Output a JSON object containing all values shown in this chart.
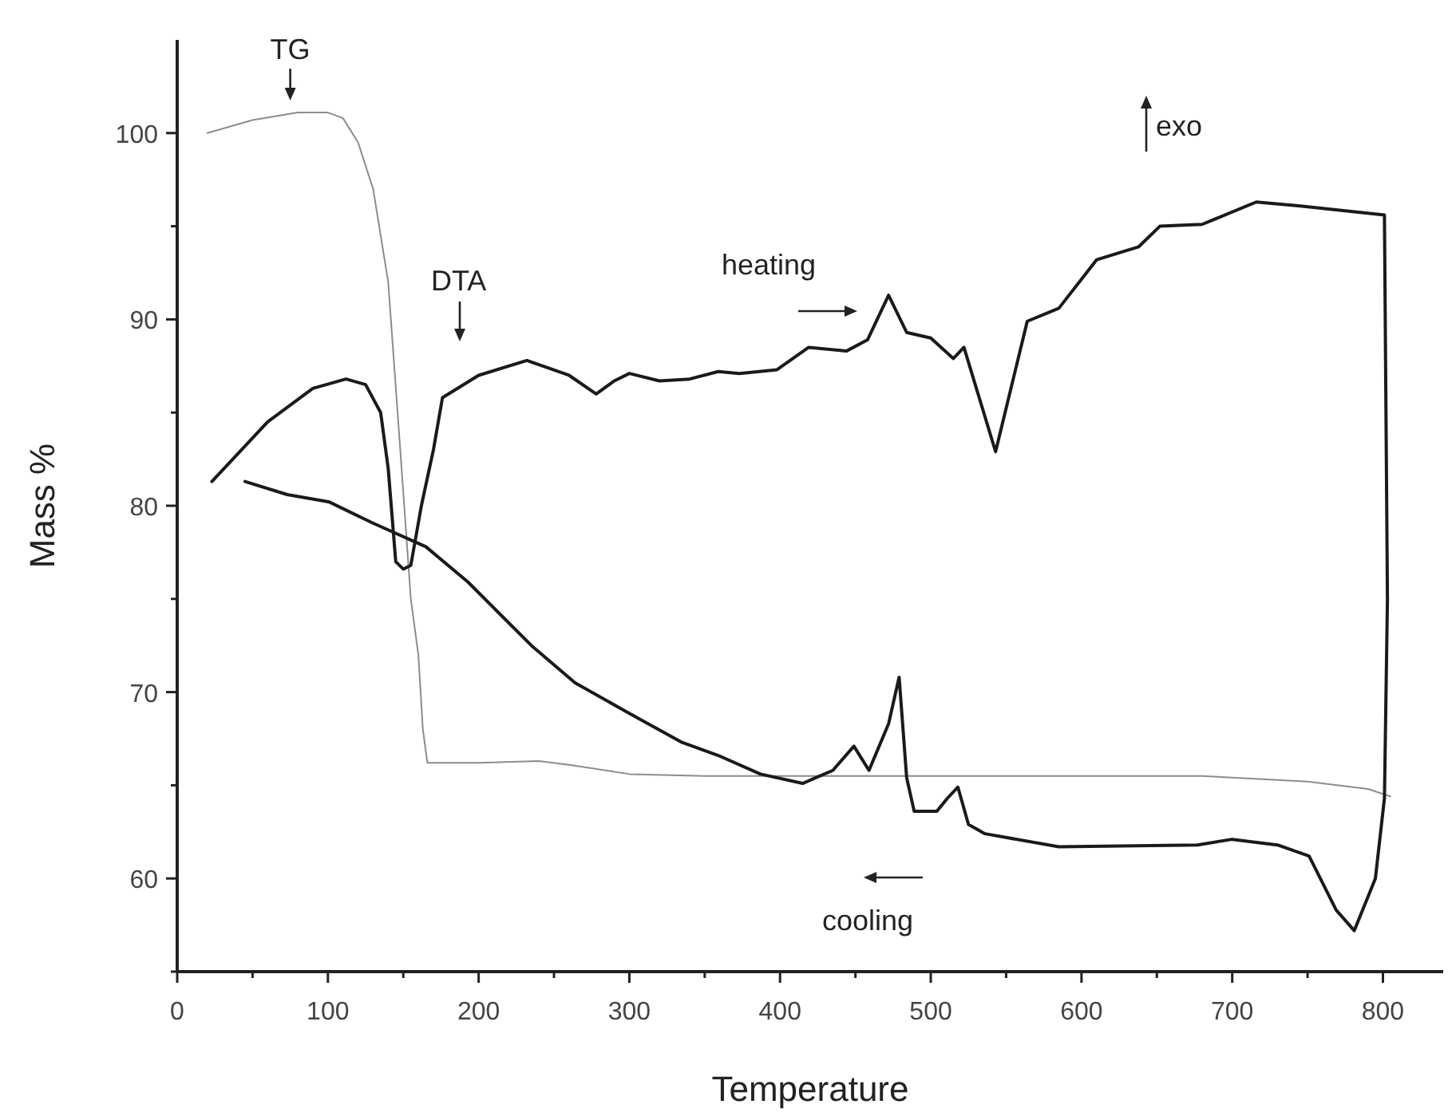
{
  "chart_data": {
    "type": "line",
    "xlabel": "Temperature",
    "ylabel": "Mass %",
    "xlim": [
      0,
      840
    ],
    "ylim": [
      55,
      105
    ],
    "xticks": [
      0,
      {
        "value": 50,
        "label": null
      },
      100,
      {
        "value": 150,
        "label": null
      },
      200,
      {
        "value": 250,
        "label": null
      },
      300,
      {
        "value": 350,
        "label": null
      },
      400,
      {
        "value": 450,
        "label": null
      },
      500,
      {
        "value": 550,
        "label": null
      },
      600,
      {
        "value": 650,
        "label": null
      },
      700,
      {
        "value": 750,
        "label": null
      },
      800
    ],
    "yticks": [
      {
        "value": 55,
        "label": null
      },
      60,
      {
        "value": 65,
        "label": null
      },
      70,
      {
        "value": 75,
        "label": null
      },
      80,
      {
        "value": 85,
        "label": null
      },
      90,
      {
        "value": 95,
        "label": null
      },
      100
    ],
    "grid": false,
    "marker": "none",
    "line_style": "solid",
    "series": [
      {
        "color": "#8c8c8c",
        "x": [
          20,
          50,
          80,
          100,
          110,
          120,
          130,
          140,
          148,
          155,
          160,
          163,
          166,
          200,
          240,
          260,
          300,
          350,
          500,
          680,
          750,
          790,
          805
        ],
        "values": [
          100,
          100.7,
          101.1,
          101.1,
          100.8,
          99.5,
          97,
          92,
          83,
          75,
          72,
          68,
          66.2,
          66.2,
          66.3,
          66.1,
          65.6,
          65.5,
          65.5,
          65.5,
          65.2,
          64.8,
          64.4
        ]
      },
      {
        "color": "#1a1a1a",
        "x": [
          23,
          60,
          90,
          112,
          125,
          135,
          140,
          145,
          150,
          155,
          162,
          170,
          176,
          200,
          232,
          260,
          278,
          290,
          300,
          320,
          340,
          359,
          373,
          398,
          419,
          444,
          458,
          472,
          484,
          500,
          515,
          522,
          543,
          564,
          585,
          610,
          638,
          652,
          680,
          716,
          744,
          801,
          803,
          801,
          795,
          781,
          769,
          751,
          730,
          700,
          677,
          585,
          536,
          525,
          518,
          511,
          504,
          489,
          484,
          479,
          472,
          459,
          449,
          435,
          415,
          387,
          359,
          335,
          299,
          264,
          235,
          214,
          193,
          165,
          129,
          101,
          73,
          45
        ],
        "values": [
          81.3,
          84.5,
          86.3,
          86.8,
          86.5,
          85,
          82,
          77,
          76.6,
          76.8,
          80,
          83,
          85.8,
          87,
          87.8,
          87,
          86,
          86.7,
          87.1,
          86.7,
          86.8,
          87.2,
          87.1,
          87.3,
          88.5,
          88.3,
          88.9,
          91.3,
          89.3,
          89,
          87.9,
          88.5,
          82.9,
          89.9,
          90.6,
          93.2,
          93.9,
          95,
          95.1,
          96.3,
          96.1,
          95.6,
          75,
          64.3,
          60,
          57.2,
          58.3,
          61.2,
          61.8,
          62.1,
          61.8,
          61.7,
          62.4,
          62.9,
          64.9,
          64.3,
          63.6,
          63.6,
          65.4,
          70.8,
          68.3,
          65.8,
          67.1,
          65.8,
          65.1,
          65.6,
          66.6,
          67.3,
          68.9,
          70.5,
          72.5,
          74.2,
          75.9,
          77.8,
          79.1,
          80.2,
          80.6,
          81.3
        ]
      }
    ],
    "annotations": [
      {
        "text": "TG",
        "x": 75,
        "y": 101.4
      },
      "DTA",
      "heating",
      "cooling",
      "exo"
    ]
  }
}
